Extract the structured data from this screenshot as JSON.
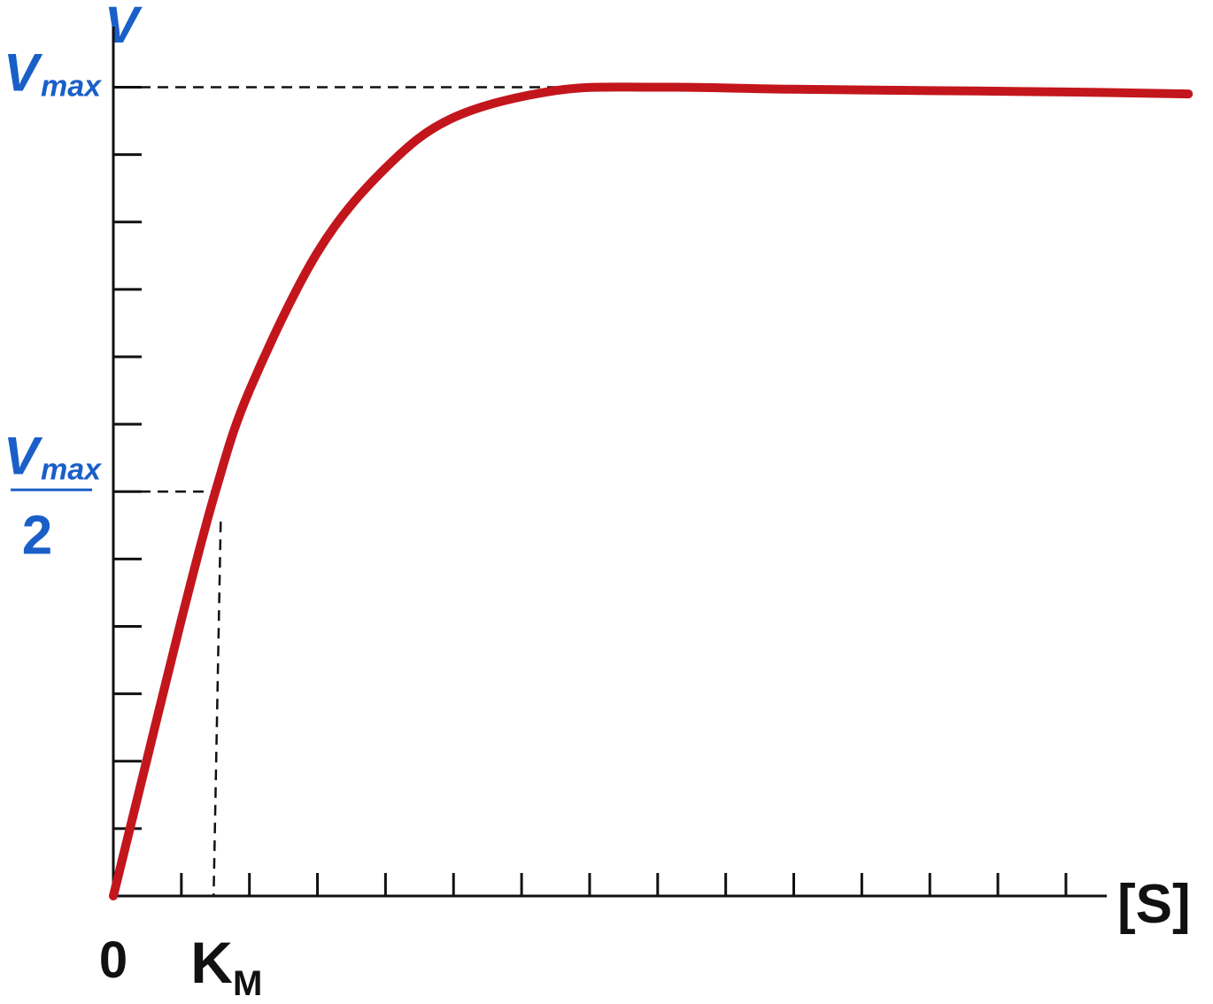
{
  "chart_data": {
    "type": "line",
    "y_label": "V",
    "x_label": "[S]",
    "x": [
      0,
      0.5,
      1,
      1.5,
      2,
      3,
      4,
      5,
      6.5,
      8,
      10,
      12,
      14,
      15.8
    ],
    "series": [
      {
        "color": "#c3161c",
        "values": [
          0,
          2.05,
          4.1,
          6,
          7.5,
          9.55,
          10.8,
          11.55,
          11.95,
          12,
          11.97,
          11.95,
          11.93,
          11.9
        ]
      }
    ],
    "xlim": [
      0,
      14.6
    ],
    "ylim": [
      0,
      12.9
    ],
    "xticks": [
      0,
      {
        "value": 1.5,
        "label": "K",
        "sub": "M"
      }
    ],
    "yticks": [
      {
        "value": 12,
        "label": "V",
        "sub": "max"
      },
      {
        "value": 6,
        "label": "V",
        "sub": "max",
        "denominator": "2"
      }
    ],
    "xminor": [
      1,
      2,
      3,
      4,
      5,
      6,
      7,
      8,
      9,
      10,
      11,
      12,
      13,
      14
    ],
    "yminor": [
      1,
      2,
      3,
      4,
      5,
      6,
      7,
      8,
      9,
      10,
      11,
      12
    ],
    "km": 1.5,
    "vmax": 12,
    "label_color": "#1a5fc8"
  }
}
